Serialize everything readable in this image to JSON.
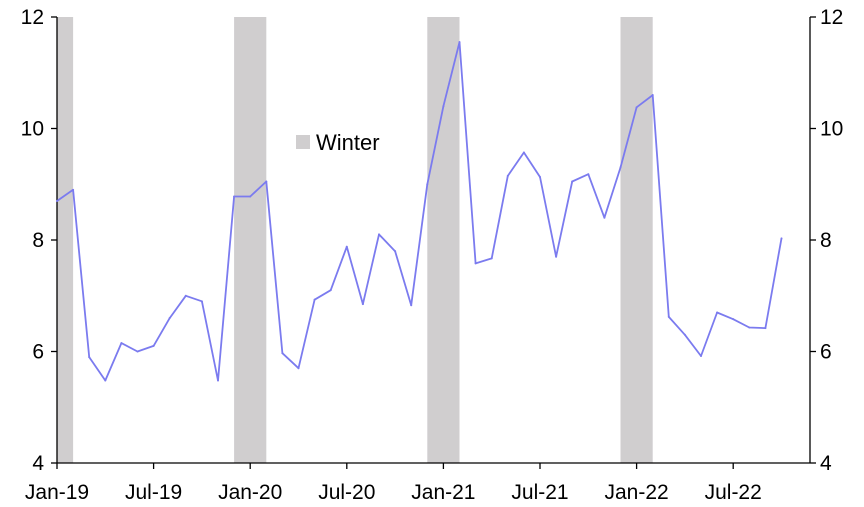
{
  "chart_data": {
    "type": "line",
    "x_start": "Jan-19",
    "x_tick_labels": [
      "Jan-19",
      "Jul-19",
      "Jan-20",
      "Jul-20",
      "Jan-21",
      "Jul-21",
      "Jan-22",
      "Jul-22"
    ],
    "y_left_ticks": [
      "4",
      "6",
      "8",
      "10",
      "12"
    ],
    "y_right_ticks": [
      "4",
      "6",
      "8",
      "10",
      "12"
    ],
    "ylim": [
      4,
      12
    ],
    "grid": false,
    "series": [
      {
        "color": "#7b7bef",
        "values": [
          8.7,
          8.9,
          5.9,
          5.48,
          6.15,
          6.0,
          6.1,
          6.6,
          7.0,
          6.9,
          5.48,
          8.78,
          8.78,
          9.05,
          5.97,
          5.7,
          6.93,
          7.1,
          7.88,
          6.85,
          8.1,
          7.8,
          6.83,
          9.0,
          10.4,
          11.55,
          7.58,
          7.67,
          9.15,
          9.57,
          9.13,
          7.7,
          9.05,
          9.18,
          8.4,
          9.3,
          10.38,
          10.6,
          6.62,
          6.3,
          5.92,
          6.7,
          6.58,
          6.43,
          6.42,
          8.03
        ]
      }
    ],
    "legend": {
      "label": "Winter",
      "color": "#d0cecf",
      "position": "top-center"
    },
    "winter_shading": [
      [
        "Dec-18",
        "Feb-19"
      ],
      [
        "Dec-19",
        "Feb-20"
      ],
      [
        "Dec-20",
        "Feb-21"
      ],
      [
        "Dec-21",
        "Feb-22"
      ]
    ]
  }
}
